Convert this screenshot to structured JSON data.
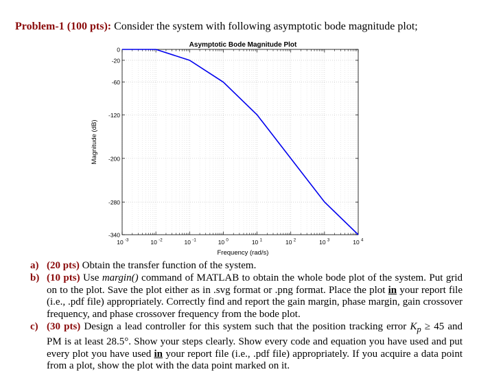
{
  "heading": {
    "problem": "Problem-1 (100 pts):",
    "intro": "Consider the system with following asymptotic bode magnitude plot;"
  },
  "chart_data": {
    "type": "line",
    "title": "Asymptotic Bode Magnitude Plot",
    "xlabel": "Frequency (rad/s)",
    "ylabel": "Magnitude (dB)",
    "x_scale": "log",
    "xlim": [
      0.001,
      10000
    ],
    "ylim": [
      -340,
      0
    ],
    "x_ticks": [
      {
        "base": "10",
        "exp": "-3"
      },
      {
        "base": "10",
        "exp": "-2"
      },
      {
        "base": "10",
        "exp": "-1"
      },
      {
        "base": "10",
        "exp": "0"
      },
      {
        "base": "10",
        "exp": "1"
      },
      {
        "base": "10",
        "exp": "2"
      },
      {
        "base": "10",
        "exp": "3"
      },
      {
        "base": "10",
        "exp": "4"
      }
    ],
    "x_tick_values": [
      0.001,
      0.01,
      0.1,
      1,
      10,
      100,
      1000,
      10000
    ],
    "y_ticks": [
      "0",
      "-20",
      "-60",
      "-120",
      "-200",
      "-280",
      "-340"
    ],
    "y_tick_values": [
      0,
      -20,
      -60,
      -120,
      -200,
      -280,
      -340
    ],
    "grid": true,
    "line_color": "#0000ee",
    "series": [
      {
        "x": [
          0.001,
          0.01,
          0.1,
          1,
          10,
          1000,
          10000
        ],
        "y": [
          0,
          0,
          -20,
          -60,
          -120,
          -280,
          -340
        ]
      }
    ]
  },
  "items": [
    {
      "label": "a)",
      "points": "(20 pts)",
      "text": "Obtain the transfer function of the system."
    },
    {
      "label": "b)",
      "points": "(10 pts)",
      "pre": "Use",
      "cmd": "margin()",
      "mid1": "command of MATLAB to obtain the whole bode plot of the system. Put grid on to the plot. Save the plot either as in .svg format or .png format. Place the plot",
      "emph": "in",
      "post": "your report file (i.e., .pdf file) appropriately. Correctly find and report the gain margin, phase margin, gain crossover frequency, and phase crossover frequency from the bode plot."
    },
    {
      "label": "c)",
      "points": "(30 pts)",
      "pre": "Design a lead controller for this system such that the position tracking error",
      "kp": "K",
      "kp_sub": "p",
      "cond": "≥ 45",
      "mid1": "and PM is at least 28.5°. Show your steps clearly. Show every code and equation you have used and put every plot you have used",
      "emph": "in",
      "post": "your report file (i.e., .pdf file) appropriately. If you acquire a data point from a plot, show the plot with the data point marked on it."
    }
  ]
}
